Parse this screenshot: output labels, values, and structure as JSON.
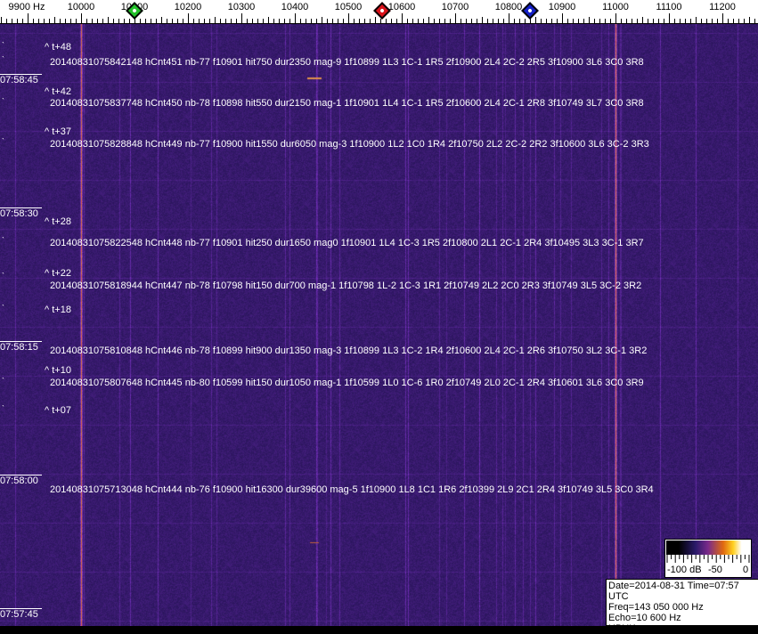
{
  "axis": {
    "unit_label": "9900 Hz",
    "ticks": [
      "10000",
      "10100",
      "10200",
      "10300",
      "10400",
      "10500",
      "10600",
      "10700",
      "10800",
      "10900",
      "11000",
      "11100",
      "11200"
    ],
    "markers": [
      {
        "name": "green-marker",
        "color": "#22c22a",
        "freq": 10100
      },
      {
        "name": "red-marker",
        "color": "#d8121a",
        "freq": 10563
      },
      {
        "name": "blue-marker",
        "color": "#1420c8",
        "freq": 10840
      }
    ]
  },
  "time_labels": [
    "07:58:45",
    "07:58:30",
    "07:58:15",
    "07:58:00",
    "07:57:45"
  ],
  "offsets": [
    "^ t+48",
    "^ t+42",
    "^ t+37",
    "^ t+28",
    "^ t+22",
    "^ t+18",
    "^ t+10",
    "^ t+07"
  ],
  "detections": [
    "20140831075842148 hCnt451 nb-77 f10901 hit750 dur2350 mag-9 1f10899 1L3 1C-1 1R5 2f10900 2L4 2C-2 2R5 3f10900 3L6 3C0 3R8",
    "20140831075837748 hCnt450 nb-78 f10898 hit550 dur2150 mag-1 1f10901 1L4 1C-1 1R5 2f10600 2L4 2C-1 2R8 3f10749 3L7 3C0 3R8",
    "20140831075828848 hCnt449 nb-77 f10900 hit1550 dur6050 mag-3 1f10900 1L2 1C0 1R4 2f10750 2L2 2C-2 2R2 3f10600 3L6 3C-2 3R3",
    "20140831075822548 hCnt448 nb-77 f10901 hit250 dur1650 mag0 1f10901 1L4 1C-3 1R5 2f10800 2L1 2C-1 2R4 3f10495 3L3 3C-1 3R7",
    "20140831075818944 hCnt447 nb-78 f10798 hit150 dur700 mag-1 1f10798 1L-2 1C-3 1R1 2f10749 2L2 2C0 2R3 3f10749 3L5 3C-2 3R2",
    "20140831075810848 hCnt446 nb-78 f10899 hit900 dur1350 mag-3 1f10899 1L3 1C-2 1R4 2f10600 2L4 2C-1 2R6 3f10750 3L2 3C-1 3R2",
    "20140831075807648 hCnt445 nb-80 f10599 hit150 dur1050 mag-1 1f10599 1L0 1C-6 1R0 2f10749 2L0 2C-1 2R4 3f10601 3L6 3C0 3R9",
    "20140831075713048 hCnt444 nb-76 f10900 hit16300 dur39600 mag-5 1f10900 1L8 1C1 1R6 2f10399 2L9 2C1 2R4 3f10749 3L5 3C0 3R4"
  ],
  "color_scale": {
    "labels": [
      "-100 dB",
      "-50",
      "0"
    ]
  },
  "info": {
    "line1": "Date=2014-08-31 Time=07:57 UTC",
    "line2": "Freq=143 050 000 Hz",
    "line3": "Echo=10 600 Hz",
    "line4": "HPHK"
  },
  "colors": {
    "background": "#2a1f6e",
    "carrier": "#e07a3a",
    "line": "#7a3a9a"
  }
}
